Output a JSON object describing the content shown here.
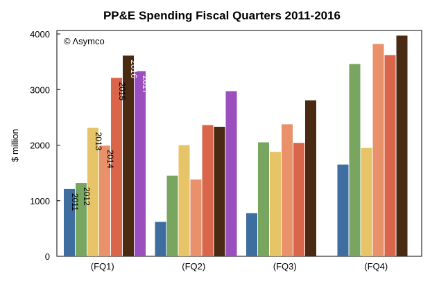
{
  "chart_data": {
    "type": "bar",
    "title": "PP&E Spending Fiscal Quarters 2011-2016",
    "ylabel": "$ million",
    "xlabel": "",
    "annotation": "© Λsymco",
    "categories": [
      "(FQ1)",
      "(FQ2)",
      "(FQ3)",
      "(FQ4)"
    ],
    "ylim": [
      0,
      4000
    ],
    "yticks": [
      0,
      1000,
      2000,
      3000,
      4000
    ],
    "grid": false,
    "series": [
      {
        "name": "2011",
        "color": "#3e6da0",
        "label_color": "#000000",
        "values": [
          1210,
          620,
          775,
          1650
        ]
      },
      {
        "name": "2012",
        "color": "#78a660",
        "label_color": "#000000",
        "values": [
          1320,
          1450,
          2050,
          3460
        ]
      },
      {
        "name": "2013",
        "color": "#e8c468",
        "label_color": "#000000",
        "values": [
          2310,
          2000,
          1880,
          1950
        ]
      },
      {
        "name": "2014",
        "color": "#e8916a",
        "label_color": "#000000",
        "values": [
          1990,
          1380,
          2375,
          3820
        ]
      },
      {
        "name": "2015",
        "color": "#d9664a",
        "label_color": "#000000",
        "values": [
          3210,
          2360,
          2040,
          3620
        ]
      },
      {
        "name": "2016",
        "color": "#4a2a12",
        "label_color": "#ffffff",
        "values": [
          3610,
          2330,
          2805,
          3970
        ]
      },
      {
        "name": "2017",
        "color": "#9b4fbf",
        "label_color": "#ffffff",
        "values": [
          3330,
          2970,
          null,
          null
        ]
      }
    ]
  }
}
